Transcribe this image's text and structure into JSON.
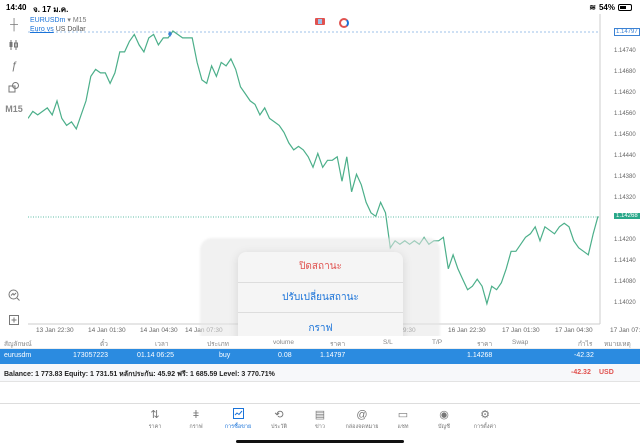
{
  "status_bar": {
    "time": "14:40",
    "date": "จ. 17 ม.ค.",
    "battery": "54%"
  },
  "tools": [
    {
      "name": "crosshair-icon",
      "glyph": "┼"
    },
    {
      "name": "chart-type-icon",
      "glyph": "ǂ"
    },
    {
      "name": "indicators-icon",
      "glyph": "ƒ"
    },
    {
      "name": "objects-icon",
      "glyph": "⌂"
    },
    {
      "name": "timeframe",
      "glyph": "M15"
    },
    {
      "name": "zoom-icon",
      "glyph": "⊘"
    },
    {
      "name": "add-icon",
      "glyph": "⊞"
    }
  ],
  "chart": {
    "symbol": "EURUSDm",
    "arrow": "▾",
    "timeframe": "M15",
    "description_prefix": "Euro vs",
    "description": "US Dollar",
    "colors": {
      "line": "#4caf8a",
      "entry": "#3b82d4",
      "current": "#2aa88a"
    }
  },
  "chart_data": {
    "type": "line",
    "title": "EURUSDm M15",
    "y_ticks": [
      "1.14740",
      "1.14680",
      "1.14620",
      "1.14560",
      "1.14500",
      "1.14440",
      "1.14380",
      "1.14320",
      "1.14200",
      "1.14140",
      "1.14080",
      "1.14020"
    ],
    "price_markers": {
      "entry": "1.14797",
      "current": "1.14268"
    },
    "x_ticks": [
      "13 Jan 22:30",
      "14 Jan 01:30",
      "14 Jan 04:30",
      "14 Jan 07:30",
      "14 Jan 19:30",
      "16 Jan 22:30",
      "17 Jan 01:30",
      "17 Jan 04:30",
      "17 Jan 07:30"
    ],
    "ylim": [
      1.14,
      1.1481
    ],
    "values": [
      1.1455,
      1.1457,
      1.1456,
      1.1457,
      1.1458,
      1.1456,
      1.146,
      1.1455,
      1.1453,
      1.1454,
      1.1452,
      1.1456,
      1.146,
      1.1467,
      1.1469,
      1.1468,
      1.1468,
      1.1465,
      1.1468,
      1.1474,
      1.1474,
      1.1477,
      1.1479,
      1.1476,
      1.1474,
      1.1478,
      1.1479,
      1.1476,
      1.1478,
      1.1478,
      1.148,
      1.1479,
      1.1478,
      1.1478,
      1.1478,
      1.1471,
      1.1466,
      1.1465,
      1.147,
      1.1467,
      1.1471,
      1.147,
      1.1472,
      1.1469,
      1.1464,
      1.1462,
      1.146,
      1.1459,
      1.1456,
      1.1458,
      1.1455,
      1.1454,
      1.1453,
      1.1451,
      1.1448,
      1.1446,
      1.1447,
      1.1446,
      1.1444,
      1.1441,
      1.1445,
      1.1441,
      1.1443,
      1.1443,
      1.1444,
      1.1437,
      1.1444,
      1.1434,
      1.1439,
      1.1436,
      1.1431,
      1.1428,
      1.1427,
      1.1431,
      1.1428,
      1.1418,
      1.142,
      1.1419,
      1.142,
      1.1419,
      1.142,
      1.1419,
      1.1421,
      1.1419,
      1.142,
      1.142,
      1.1421,
      1.1412,
      1.1416,
      1.1412,
      1.1409,
      1.1406,
      1.1407,
      1.1409,
      1.1407,
      1.1402,
      1.1407,
      1.1406,
      1.1408,
      1.1412,
      1.1417,
      1.1417,
      1.1419,
      1.1421,
      1.1422,
      1.1424,
      1.142,
      1.1424,
      1.1423,
      1.1422,
      1.1424,
      1.1425,
      1.1424,
      1.142,
      1.1418,
      1.1417,
      1.1416,
      1.1422,
      1.1427
    ]
  },
  "popover": {
    "close_position": "ปิดสถานะ",
    "modify_position": "ปรับเปลี่ยนสถานะ",
    "chart": "กราฟ"
  },
  "table": {
    "headers": {
      "symbol": "สัญลักษณ์",
      "ticket": "ตั๋ว",
      "time": "เวลา",
      "type": "ประเภท",
      "volume": "volume",
      "price": "ราคา",
      "sl": "S/L",
      "tp": "T/P",
      "cur_price": "ราคา",
      "swap": "Swap",
      "profit": "กำไร",
      "comment": "หมายเหตุ"
    },
    "rows": [
      {
        "symbol": "eurusdm",
        "ticket": "173057223",
        "time": "01.14 06:25",
        "type": "buy",
        "volume": "0.08",
        "price": "1.14797",
        "sl": "",
        "tp": "",
        "cur_price": "1.14268",
        "swap": "",
        "profit": "-42.32",
        "comment": ""
      }
    ],
    "summary": {
      "text": "Balance: 1 773.83 Equity: 1 731.51 หลักประกัน: 45.92 ฟรี: 1 685.59 Level: 3 770.71%",
      "profit": "-42.32",
      "currency": "USD"
    }
  },
  "tabbar": [
    {
      "label": "ราคา",
      "icon": "⇅",
      "name": "quotes"
    },
    {
      "label": "กราฟ",
      "icon": "ǂ",
      "name": "charts"
    },
    {
      "label": "การซื้อขาย",
      "icon": "📈",
      "name": "trade",
      "active": true
    },
    {
      "label": "ประวัติ",
      "icon": "⟲",
      "name": "history"
    },
    {
      "label": "ข่าว",
      "icon": "▤",
      "name": "news"
    },
    {
      "label": "กล่องจดหมาย",
      "icon": "@",
      "name": "mailbox"
    },
    {
      "label": "แชท",
      "icon": "▭",
      "name": "chat"
    },
    {
      "label": "บัญชี",
      "icon": "◉",
      "name": "accounts"
    },
    {
      "label": "การตั้งค่า",
      "icon": "⚙",
      "name": "settings"
    }
  ]
}
